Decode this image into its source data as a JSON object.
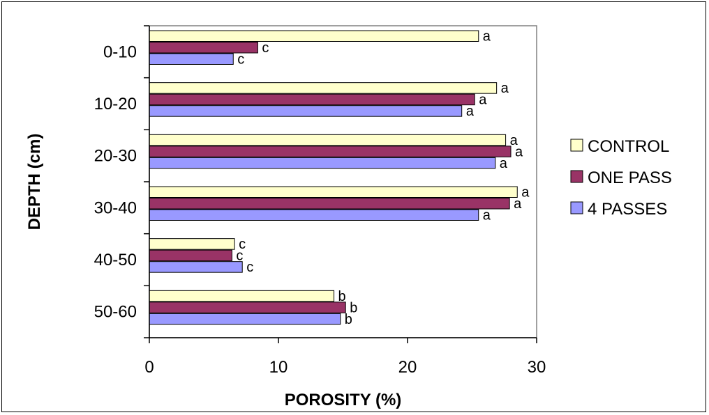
{
  "chart_data": {
    "type": "bar",
    "orientation": "horizontal",
    "categories": [
      "0-10",
      "10-20",
      "20-30",
      "30-40",
      "40-50",
      "50-60"
    ],
    "series": [
      {
        "name": "CONTROL",
        "color": "#FFFFCC",
        "values": [
          25.5,
          26.9,
          27.6,
          28.5,
          6.6,
          14.3
        ],
        "labels": [
          "a",
          "a",
          "a",
          "a",
          "c",
          "b"
        ]
      },
      {
        "name": "ONE PASS",
        "color": "#993366",
        "values": [
          8.4,
          25.2,
          28.0,
          27.9,
          6.4,
          15.2
        ],
        "labels": [
          "c",
          "a",
          "a",
          "a",
          "c",
          "b"
        ]
      },
      {
        "name": "4 PASSES",
        "color": "#9999FF",
        "values": [
          6.5,
          24.2,
          26.8,
          25.5,
          7.2,
          14.8
        ],
        "labels": [
          "c",
          "a",
          "a",
          "a",
          "c",
          "b"
        ]
      }
    ],
    "xlabel": "POROSITY (%)",
    "ylabel": "DEPTH (cm)",
    "xlim": [
      0,
      30
    ],
    "xticks": [
      "0",
      "10",
      "20",
      "30"
    ],
    "grid": false,
    "legend_position": "right"
  }
}
